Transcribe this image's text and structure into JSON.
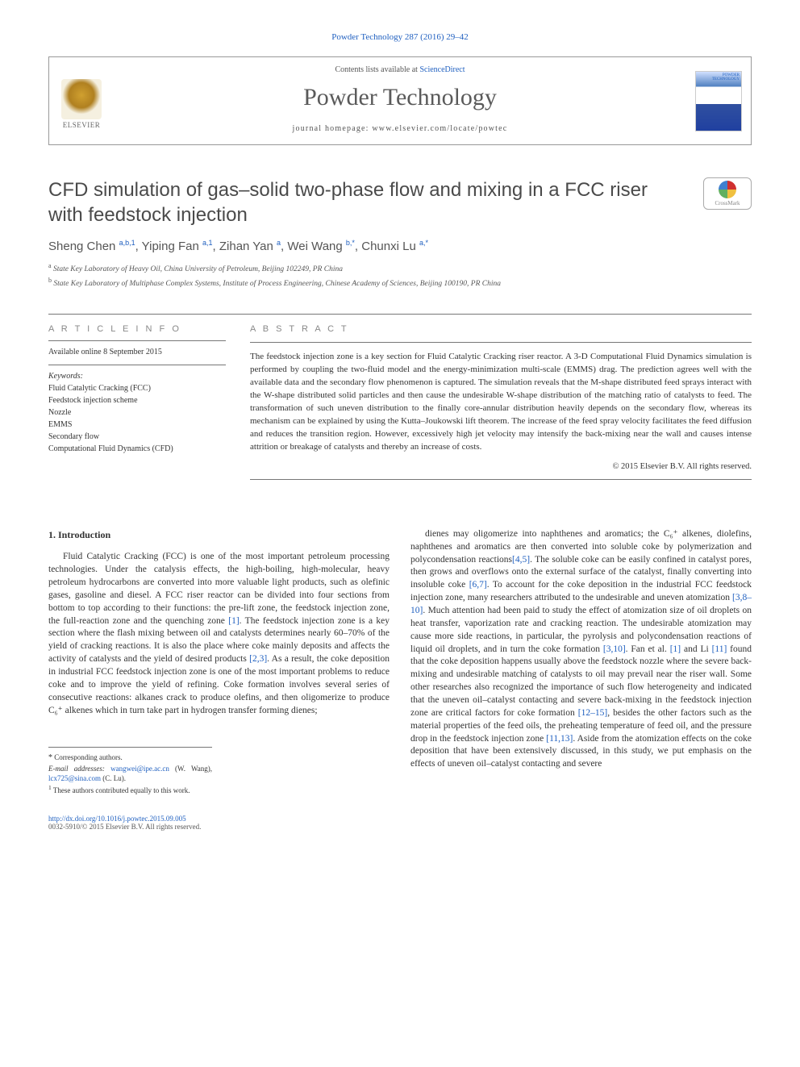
{
  "journal_ref": "Powder Technology 287 (2016) 29–42",
  "header": {
    "contents_prefix": "Contents lists available at ",
    "contents_link": "ScienceDirect",
    "journal_name": "Powder Technology",
    "homepage_prefix": "journal homepage: ",
    "homepage_url": "www.elsevier.com/locate/powtec",
    "elsevier_label": "ELSEVIER",
    "cover_label": "POWDER TECHNOLOGY"
  },
  "crossmark_label": "CrossMark",
  "title": "CFD simulation of gas–solid two-phase flow and mixing in a FCC riser with feedstock injection",
  "authors_html": "Sheng Chen <sup>a,b,1</sup>, Yiping Fan <sup>a,1</sup>, Zihan Yan <sup>a</sup>, Wei Wang <sup>b,*</sup>, Chunxi Lu <sup>a,*</sup>",
  "affiliations": [
    "a  State Key Laboratory of Heavy Oil, China University of Petroleum, Beijing 102249, PR China",
    "b  State Key Laboratory of Multiphase Complex Systems, Institute of Process Engineering, Chinese Academy of Sciences, Beijing 100190, PR China"
  ],
  "article_info": {
    "head": "A R T I C L E   I N F O",
    "available": "Available online 8 September 2015",
    "keywords_label": "Keywords:",
    "keywords": [
      "Fluid Catalytic Cracking (FCC)",
      "Feedstock injection scheme",
      "Nozzle",
      "EMMS",
      "Secondary flow",
      "Computational Fluid Dynamics (CFD)"
    ]
  },
  "abstract": {
    "head": "A B S T R A C T",
    "text": "The feedstock injection zone is a key section for Fluid Catalytic Cracking riser reactor. A 3-D Computational Fluid Dynamics simulation is performed by coupling the two-fluid model and the energy-minimization multi-scale (EMMS) drag. The prediction agrees well with the available data and the secondary flow phenomenon is captured. The simulation reveals that the M-shape distributed feed sprays interact with the W-shape distributed solid particles and then cause the undesirable W-shape distribution of the matching ratio of catalysts to feed. The transformation of such uneven distribution to the finally core-annular distribution heavily depends on the secondary flow, whereas its mechanism can be explained by using the Kutta–Joukowski lift theorem. The increase of the feed spray velocity facilitates the feed diffusion and reduces the transition region. However, excessively high jet velocity may intensify the back-mixing near the wall and causes intense attrition or breakage of catalysts and thereby an increase of costs.",
    "copyright": "© 2015 Elsevier B.V. All rights reserved."
  },
  "body": {
    "section_number": "1.",
    "section_title": "Introduction",
    "col1": "Fluid Catalytic Cracking (FCC) is one of the most important petroleum processing technologies. Under the catalysis effects, the high-boiling, high-molecular, heavy petroleum hydrocarbons are converted into more valuable light products, such as olefinic gases, gasoline and diesel. A FCC riser reactor can be divided into four sections from bottom to top according to their functions: the pre-lift zone, the feedstock injection zone, the full-reaction zone and the quenching zone [1]. The feedstock injection zone is a key section where the flash mixing between oil and catalysts determines nearly 60–70% of the yield of cracking reactions. It is also the place where coke mainly deposits and affects the activity of catalysts and the yield of desired products [2,3]. As a result, the coke deposition in industrial FCC feedstock injection zone is one of the most important problems to reduce coke and to improve the yield of refining. Coke formation involves several series of consecutive reactions: alkanes crack to produce olefins, and then oligomerize to produce C₆⁺ alkenes which in turn take part in hydrogen transfer forming dienes;",
    "col2": "dienes may oligomerize into naphthenes and aromatics; the C₆⁺ alkenes, diolefins, naphthenes and aromatics are then converted into soluble coke by polymerization and polycondensation reactions[4,5]. The soluble coke can be easily confined in catalyst pores, then grows and overflows onto the external surface of the catalyst, finally converting into insoluble coke [6,7]. To account for the coke deposition in the industrial FCC feedstock injection zone, many researchers attributed to the undesirable and uneven atomization [3,8–10]. Much attention had been paid to study the effect of atomization size of oil droplets on heat transfer, vaporization rate and cracking reaction. The undesirable atomization may cause more side reactions, in particular, the pyrolysis and polycondensation reactions of liquid oil droplets, and in turn the coke formation [3,10]. Fan et al. [1] and Li [11] found that the coke deposition happens usually above the feedstock nozzle where the severe back-mixing and undesirable matching of catalysts to oil may prevail near the riser wall. Some other researches also recognized the importance of such flow heterogeneity and indicated that the uneven oil–catalyst contacting and severe back-mixing in the feedstock injection zone are critical factors for coke formation [12–15], besides the other factors such as the material properties of the feed oils, the preheating temperature of feed oil, and the pressure drop in the feedstock injection zone [11,13]. Aside from the atomization effects on the coke deposition that have been extensively discussed, in this study, we put emphasis on the effects of uneven oil–catalyst contacting and severe"
  },
  "footnotes": {
    "corresponding": "Corresponding authors.",
    "emails_label": "E-mail addresses:",
    "email1": "wangwei@ipe.ac.cn",
    "email1_name": "(W. Wang),",
    "email2": "lcx725@sina.com",
    "email2_name": "(C. Lu).",
    "note1": "These authors contributed equally to this work."
  },
  "footer": {
    "doi": "http://dx.doi.org/10.1016/j.powtec.2015.09.005",
    "issn_line": "0032-5910/© 2015 Elsevier B.V. All rights reserved."
  },
  "colors": {
    "link": "#2060c0",
    "text": "#333333",
    "heading_gray": "#5a5a5a",
    "border": "#777777"
  }
}
